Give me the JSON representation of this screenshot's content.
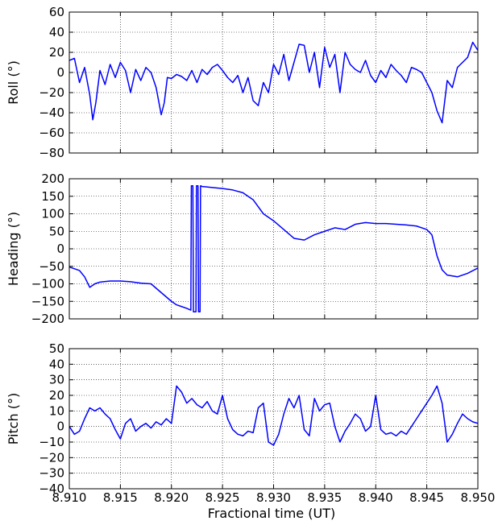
{
  "figure": {
    "xlabel": "Fractional time (UT)"
  },
  "chart_data": [
    {
      "type": "line",
      "ylabel": "Roll (°)",
      "xlim": [
        8.91,
        8.95
      ],
      "ylim": [
        -80,
        60
      ],
      "yticks": [
        -80,
        -60,
        -40,
        -20,
        0,
        20,
        40,
        60
      ],
      "xticks": [
        8.91,
        8.915,
        8.92,
        8.925,
        8.93,
        8.935,
        8.94,
        8.945,
        8.95
      ],
      "show_xtick_labels": false,
      "grid": true,
      "series_color": "#0000ff",
      "x": [
        8.91,
        8.9105,
        8.911,
        8.9115,
        8.912,
        8.9123,
        8.9126,
        8.913,
        8.9135,
        8.914,
        8.9145,
        8.915,
        8.9155,
        8.916,
        8.9165,
        8.917,
        8.9175,
        8.918,
        8.9185,
        8.919,
        8.9193,
        8.9196,
        8.92,
        8.9205,
        8.921,
        8.9215,
        8.922,
        8.9225,
        8.923,
        8.9235,
        8.924,
        8.9245,
        8.925,
        8.9255,
        8.926,
        8.9265,
        8.927,
        8.9275,
        8.928,
        8.9285,
        8.929,
        8.9295,
        8.93,
        8.9305,
        8.931,
        8.9315,
        8.932,
        8.9325,
        8.933,
        8.9335,
        8.934,
        8.9345,
        8.935,
        8.9355,
        8.936,
        8.9365,
        8.937,
        8.9375,
        8.938,
        8.9385,
        8.939,
        8.9395,
        8.94,
        8.9405,
        8.941,
        8.9415,
        8.942,
        8.9425,
        8.943,
        8.9435,
        8.944,
        8.9445,
        8.945,
        8.9455,
        8.946,
        8.9465,
        8.947,
        8.9475,
        8.948,
        8.9485,
        8.949,
        8.9495,
        8.95
      ],
      "y": [
        12,
        14,
        -10,
        5,
        -22,
        -47,
        -30,
        2,
        -12,
        8,
        -5,
        10,
        2,
        -20,
        3,
        -8,
        5,
        0,
        -15,
        -42,
        -30,
        -5,
        -6,
        -2,
        -4,
        -8,
        2,
        -10,
        3,
        -2,
        5,
        8,
        2,
        -5,
        -10,
        -3,
        -20,
        -5,
        -28,
        -33,
        -10,
        -20,
        8,
        -2,
        18,
        -8,
        10,
        28,
        27,
        0,
        20,
        -15,
        25,
        5,
        18,
        -20,
        20,
        8,
        3,
        0,
        12,
        -3,
        -10,
        2,
        -5,
        8,
        2,
        -3,
        -10,
        5,
        3,
        0,
        -10,
        -20,
        -38,
        -50,
        -8,
        -15,
        5,
        10,
        15,
        30,
        22
      ]
    },
    {
      "type": "line",
      "ylabel": "Heading (°)",
      "xlim": [
        8.91,
        8.95
      ],
      "ylim": [
        -200,
        200
      ],
      "yticks": [
        -200,
        -150,
        -100,
        -50,
        0,
        50,
        100,
        150,
        200
      ],
      "xticks": [
        8.91,
        8.915,
        8.92,
        8.925,
        8.93,
        8.935,
        8.94,
        8.945,
        8.95
      ],
      "show_xtick_labels": false,
      "grid": true,
      "series_color": "#0000ff",
      "x": [
        8.91,
        8.911,
        8.9115,
        8.912,
        8.9125,
        8.913,
        8.914,
        8.915,
        8.916,
        8.917,
        8.918,
        8.919,
        8.92,
        8.9205,
        8.921,
        8.9215,
        8.9219,
        8.92195,
        8.9221,
        8.92215,
        8.9224,
        8.92245,
        8.9226,
        8.92265,
        8.9228,
        8.92285,
        8.923,
        8.924,
        8.925,
        8.926,
        8.927,
        8.928,
        8.929,
        8.93,
        8.931,
        8.932,
        8.933,
        8.934,
        8.935,
        8.936,
        8.937,
        8.938,
        8.939,
        8.94,
        8.941,
        8.942,
        8.943,
        8.944,
        8.945,
        8.9455,
        8.946,
        8.9465,
        8.947,
        8.948,
        8.949,
        8.95
      ],
      "y": [
        -52,
        -62,
        -80,
        -110,
        -100,
        -95,
        -92,
        -92,
        -94,
        -98,
        -100,
        -125,
        -150,
        -160,
        -165,
        -170,
        -175,
        180,
        180,
        -180,
        -180,
        180,
        180,
        -180,
        -180,
        180,
        178,
        175,
        172,
        168,
        160,
        140,
        100,
        80,
        55,
        30,
        25,
        40,
        50,
        60,
        55,
        70,
        75,
        72,
        72,
        70,
        68,
        65,
        55,
        40,
        -20,
        -60,
        -75,
        -80,
        -70,
        -55
      ]
    },
    {
      "type": "line",
      "ylabel": "Pitch (°)",
      "xlim": [
        8.91,
        8.95
      ],
      "ylim": [
        -40,
        50
      ],
      "yticks": [
        -40,
        -30,
        -20,
        -10,
        0,
        10,
        20,
        30,
        40,
        50
      ],
      "xticks": [
        8.91,
        8.915,
        8.92,
        8.925,
        8.93,
        8.935,
        8.94,
        8.945,
        8.95
      ],
      "xtick_labels": [
        "8.910",
        "8.915",
        "8.920",
        "8.925",
        "8.930",
        "8.935",
        "8.940",
        "8.945",
        "8.950"
      ],
      "show_xtick_labels": true,
      "grid": true,
      "series_color": "#0000ff",
      "x": [
        8.91,
        8.9105,
        8.911,
        8.9115,
        8.912,
        8.9125,
        8.913,
        8.9135,
        8.914,
        8.9145,
        8.915,
        8.9155,
        8.916,
        8.9165,
        8.917,
        8.9175,
        8.918,
        8.9185,
        8.919,
        8.9195,
        8.92,
        8.9205,
        8.921,
        8.9215,
        8.922,
        8.9225,
        8.923,
        8.9235,
        8.924,
        8.9245,
        8.925,
        8.9255,
        8.926,
        8.9265,
        8.927,
        8.9275,
        8.928,
        8.9285,
        8.929,
        8.9295,
        8.93,
        8.9305,
        8.931,
        8.9315,
        8.932,
        8.9325,
        8.933,
        8.9335,
        8.934,
        8.9345,
        8.935,
        8.9355,
        8.936,
        8.9365,
        8.937,
        8.9375,
        8.938,
        8.9385,
        8.939,
        8.9395,
        8.94,
        8.9405,
        8.941,
        8.9415,
        8.942,
        8.9425,
        8.943,
        8.9435,
        8.944,
        8.9445,
        8.945,
        8.9455,
        8.946,
        8.9465,
        8.947,
        8.9475,
        8.948,
        8.9485,
        8.949,
        8.9495,
        8.95
      ],
      "y": [
        0,
        -5,
        -3,
        5,
        12,
        10,
        12,
        8,
        5,
        -2,
        -8,
        2,
        5,
        -3,
        0,
        2,
        -1,
        3,
        1,
        5,
        2,
        26,
        22,
        15,
        18,
        14,
        12,
        16,
        10,
        8,
        20,
        5,
        -2,
        -5,
        -6,
        -3,
        -4,
        12,
        15,
        -10,
        -12,
        -5,
        8,
        18,
        12,
        20,
        -2,
        -6,
        18,
        10,
        14,
        15,
        0,
        -10,
        -3,
        2,
        8,
        5,
        -3,
        0,
        20,
        -2,
        -5,
        -4,
        -6,
        -3,
        -5,
        0,
        5,
        10,
        15,
        20,
        26,
        15,
        -10,
        -5,
        2,
        8,
        5,
        3,
        2
      ]
    }
  ]
}
